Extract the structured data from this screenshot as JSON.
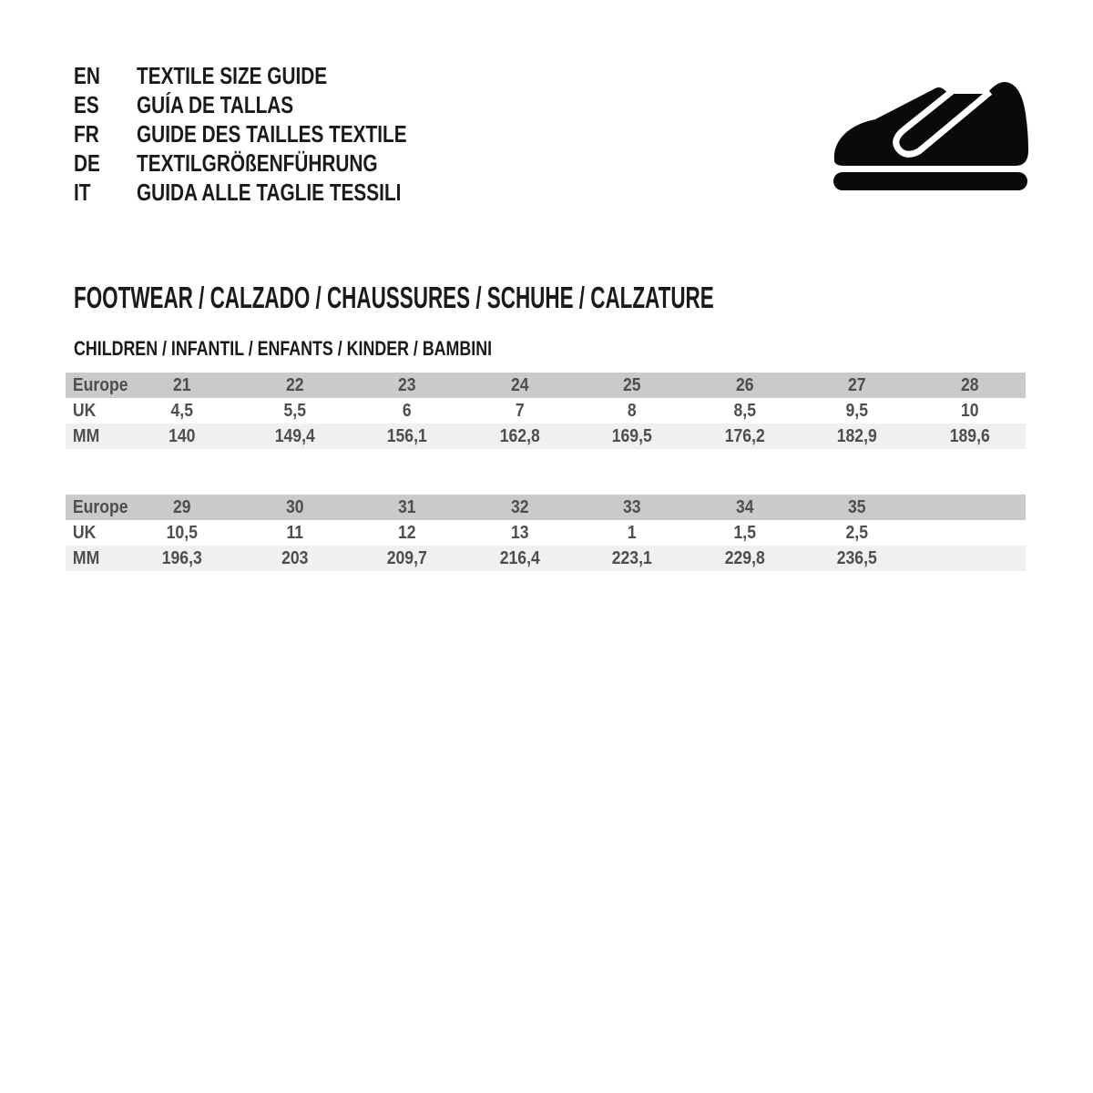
{
  "languages": [
    {
      "code": "EN",
      "label": "TEXTILE SIZE GUIDE"
    },
    {
      "code": "ES",
      "label": "GUÍA DE TALLAS"
    },
    {
      "code": "FR",
      "label": "GUIDE DES TAILLES TEXTILE"
    },
    {
      "code": "DE",
      "label": "TEXTILGRÖßENFÜHRUNG"
    },
    {
      "code": "IT",
      "label": "GUIDA ALLE TAGLIE TESSILI"
    }
  ],
  "icons": {
    "shoe": "children-shoe-icon"
  },
  "section": {
    "title": "FOOTWEAR / CALZADO / CHAUSSURES / SCHUHE / CALZATURE",
    "subtitle": "CHILDREN / INFANTIL / ENFANTS / KINDER / BAMBINI"
  },
  "tables": [
    {
      "rows": [
        {
          "label": "Europe",
          "values": [
            "21",
            "22",
            "23",
            "24",
            "25",
            "26",
            "27",
            "28"
          ]
        },
        {
          "label": "UK",
          "values": [
            "4,5",
            "5,5",
            "6",
            "7",
            "8",
            "8,5",
            "9,5",
            "10"
          ]
        },
        {
          "label": "MM",
          "values": [
            "140",
            "149,4",
            "156,1",
            "162,8",
            "169,5",
            "176,2",
            "182,9",
            "189,6"
          ]
        }
      ]
    },
    {
      "rows": [
        {
          "label": "Europe",
          "values": [
            "29",
            "30",
            "31",
            "32",
            "33",
            "34",
            "35",
            ""
          ]
        },
        {
          "label": "UK",
          "values": [
            "10,5",
            "11",
            "12",
            "13",
            "1",
            "1,5",
            "2,5",
            ""
          ]
        },
        {
          "label": "MM",
          "values": [
            "196,3",
            "203",
            "209,7",
            "216,4",
            "223,1",
            "229,8",
            "236,5",
            ""
          ]
        }
      ]
    }
  ],
  "colors": {
    "table_header_bg": "#cacaca",
    "table_alt_row_bg": "#f0f0f1",
    "table_text": "#4d4e50",
    "heading_text": "#1a1a1a",
    "icon": "#0a0a0a"
  }
}
